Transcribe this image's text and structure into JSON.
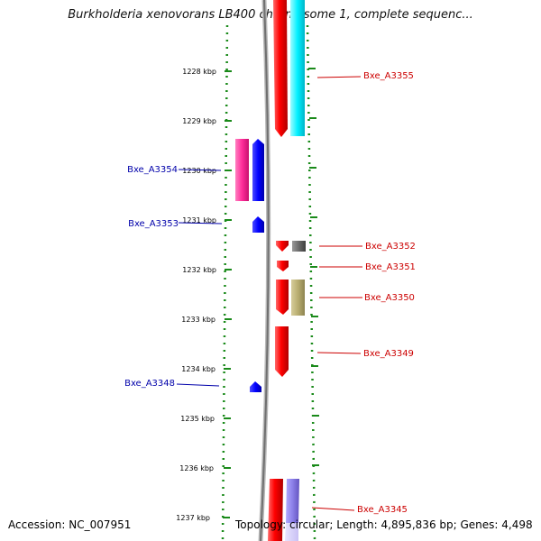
{
  "header": {
    "title": "Burkholderia xenovorans LB400 chromosome 1, complete sequenc..."
  },
  "footer": {
    "accession_label": "Accession:",
    "accession_value": "NC_007951",
    "topology_text": "Topology: circular; Length: 4,895,836 bp; Genes: 4,498"
  },
  "axis": {
    "ticks": [
      "1228 kbp",
      "1229 kbp",
      "1230 kbp",
      "1231 kbp",
      "1232 kbp",
      "1233 kbp",
      "1234 kbp",
      "1235 kbp",
      "1236 kbp",
      "1237 kbp"
    ]
  },
  "colors": {
    "forward_label": "#cc0000",
    "reverse_label": "#0000aa",
    "tick": "#1a8a1a",
    "backbone": "#888888"
  },
  "genes": [
    {
      "label": "Bxe_A3355",
      "strand": "forward"
    },
    {
      "label": "Bxe_A3354",
      "strand": "reverse"
    },
    {
      "label": "Bxe_A3353",
      "strand": "reverse"
    },
    {
      "label": "Bxe_A3352",
      "strand": "forward"
    },
    {
      "label": "Bxe_A3351",
      "strand": "forward"
    },
    {
      "label": "Bxe_A3350",
      "strand": "forward"
    },
    {
      "label": "Bxe_A3349",
      "strand": "forward"
    },
    {
      "label": "Bxe_A3348",
      "strand": "reverse"
    },
    {
      "label": "Bxe_A3345",
      "strand": "forward"
    }
  ]
}
